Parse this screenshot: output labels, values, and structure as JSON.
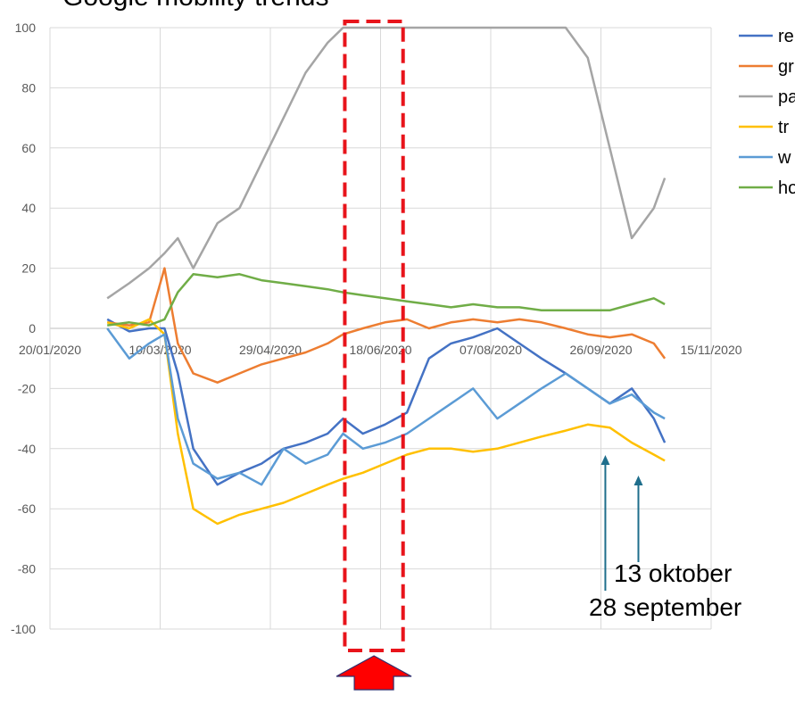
{
  "chart_data": {
    "type": "line",
    "title": "Google mobility trends",
    "xlabel": "",
    "ylabel": "",
    "xlim": [
      "2020-01-20",
      "2020-11-15"
    ],
    "ylim": [
      -100,
      100
    ],
    "x_ticks": [
      "20/01/2020",
      "10/03/2020",
      "29/04/2020",
      "18/06/2020",
      "07/08/2020",
      "26/09/2020",
      "15/11/2020"
    ],
    "y_ticks": [
      "100",
      "80",
      "60",
      "40",
      "20",
      "0",
      "-20",
      "-40",
      "-60",
      "-80",
      "-100"
    ],
    "grid": true,
    "legend_position": "right",
    "legend": [
      {
        "label": "re",
        "color": "#4472c4"
      },
      {
        "label": "gr",
        "color": "#ed7d31"
      },
      {
        "label": "pa",
        "color": "#a5a5a5"
      },
      {
        "label": "tr",
        "color": "#ffc000"
      },
      {
        "label": "w",
        "color": "#5b9bd5"
      },
      {
        "label": "ho",
        "color": "#70ad47"
      }
    ],
    "series": [
      {
        "color": "#4472c4",
        "x": [
          "2020-02-15",
          "2020-02-25",
          "2020-03-05",
          "2020-03-12",
          "2020-03-18",
          "2020-03-25",
          "2020-04-05",
          "2020-04-15",
          "2020-04-25",
          "2020-05-05",
          "2020-05-15",
          "2020-05-25",
          "2020-06-01",
          "2020-06-10",
          "2020-06-20",
          "2020-06-30",
          "2020-07-10",
          "2020-07-20",
          "2020-07-30",
          "2020-08-10",
          "2020-08-20",
          "2020-08-30",
          "2020-09-10",
          "2020-09-20",
          "2020-09-30",
          "2020-10-10",
          "2020-10-20",
          "2020-10-25"
        ],
        "y": [
          3,
          -1,
          0,
          0,
          -15,
          -40,
          -52,
          -48,
          -45,
          -40,
          -38,
          -35,
          -30,
          -35,
          -32,
          -28,
          -10,
          -5,
          -3,
          0,
          -5,
          -10,
          -15,
          -20,
          -25,
          -20,
          -30,
          -38
        ]
      },
      {
        "color": "#ed7d31",
        "x": [
          "2020-02-15",
          "2020-02-25",
          "2020-03-05",
          "2020-03-12",
          "2020-03-18",
          "2020-03-25",
          "2020-04-05",
          "2020-04-15",
          "2020-04-25",
          "2020-05-05",
          "2020-05-15",
          "2020-05-25",
          "2020-06-01",
          "2020-06-10",
          "2020-06-20",
          "2020-06-30",
          "2020-07-10",
          "2020-07-20",
          "2020-07-30",
          "2020-08-10",
          "2020-08-20",
          "2020-08-30",
          "2020-09-10",
          "2020-09-20",
          "2020-09-30",
          "2020-10-10",
          "2020-10-20",
          "2020-10-25"
        ],
        "y": [
          2,
          1,
          2,
          20,
          -5,
          -15,
          -18,
          -15,
          -12,
          -10,
          -8,
          -5,
          -2,
          0,
          2,
          3,
          0,
          2,
          3,
          2,
          3,
          2,
          0,
          -2,
          -3,
          -2,
          -5,
          -10
        ]
      },
      {
        "color": "#a5a5a5",
        "x": [
          "2020-02-15",
          "2020-02-25",
          "2020-03-05",
          "2020-03-12",
          "2020-03-18",
          "2020-03-25",
          "2020-04-05",
          "2020-04-15",
          "2020-04-25",
          "2020-05-05",
          "2020-05-15",
          "2020-05-25",
          "2020-06-01",
          "2020-06-10",
          "2020-06-20",
          "2020-06-30",
          "2020-07-10",
          "2020-07-20",
          "2020-07-30",
          "2020-08-10",
          "2020-08-20",
          "2020-08-30",
          "2020-09-10",
          "2020-09-20",
          "2020-09-30",
          "2020-10-10",
          "2020-10-20",
          "2020-10-25"
        ],
        "y": [
          10,
          15,
          20,
          25,
          30,
          20,
          35,
          40,
          55,
          70,
          85,
          95,
          100,
          100,
          100,
          100,
          100,
          100,
          100,
          100,
          100,
          100,
          100,
          90,
          60,
          30,
          40,
          50
        ]
      },
      {
        "color": "#ffc000",
        "x": [
          "2020-02-15",
          "2020-02-25",
          "2020-03-05",
          "2020-03-12",
          "2020-03-18",
          "2020-03-25",
          "2020-04-05",
          "2020-04-15",
          "2020-04-25",
          "2020-05-05",
          "2020-05-15",
          "2020-05-25",
          "2020-06-01",
          "2020-06-10",
          "2020-06-20",
          "2020-06-30",
          "2020-07-10",
          "2020-07-20",
          "2020-07-30",
          "2020-08-10",
          "2020-08-20",
          "2020-08-30",
          "2020-09-10",
          "2020-09-20",
          "2020-09-30",
          "2020-10-10",
          "2020-10-20",
          "2020-10-25"
        ],
        "y": [
          2,
          0,
          3,
          -2,
          -35,
          -60,
          -65,
          -62,
          -60,
          -58,
          -55,
          -52,
          -50,
          -48,
          -45,
          -42,
          -40,
          -40,
          -41,
          -40,
          -38,
          -36,
          -34,
          -32,
          -33,
          -38,
          -42,
          -44
        ]
      },
      {
        "color": "#5b9bd5",
        "x": [
          "2020-02-15",
          "2020-02-25",
          "2020-03-05",
          "2020-03-12",
          "2020-03-18",
          "2020-03-25",
          "2020-04-05",
          "2020-04-15",
          "2020-04-25",
          "2020-05-05",
          "2020-05-15",
          "2020-05-25",
          "2020-06-01",
          "2020-06-10",
          "2020-06-20",
          "2020-06-30",
          "2020-07-10",
          "2020-07-20",
          "2020-07-30",
          "2020-08-10",
          "2020-08-20",
          "2020-08-30",
          "2020-09-10",
          "2020-09-20",
          "2020-09-30",
          "2020-10-10",
          "2020-10-20",
          "2020-10-25"
        ],
        "y": [
          0,
          -10,
          -5,
          -2,
          -30,
          -45,
          -50,
          -48,
          -52,
          -40,
          -45,
          -42,
          -35,
          -40,
          -38,
          -35,
          -30,
          -25,
          -20,
          -30,
          -25,
          -20,
          -15,
          -20,
          -25,
          -22,
          -28,
          -30
        ]
      },
      {
        "color": "#70ad47",
        "x": [
          "2020-02-15",
          "2020-02-25",
          "2020-03-05",
          "2020-03-12",
          "2020-03-18",
          "2020-03-25",
          "2020-04-05",
          "2020-04-15",
          "2020-04-25",
          "2020-05-05",
          "2020-05-15",
          "2020-05-25",
          "2020-06-01",
          "2020-06-10",
          "2020-06-20",
          "2020-06-30",
          "2020-07-10",
          "2020-07-20",
          "2020-07-30",
          "2020-08-10",
          "2020-08-20",
          "2020-08-30",
          "2020-09-10",
          "2020-09-20",
          "2020-09-30",
          "2020-10-10",
          "2020-10-20",
          "2020-10-25"
        ],
        "y": [
          1,
          2,
          1,
          3,
          12,
          18,
          17,
          18,
          16,
          15,
          14,
          13,
          12,
          11,
          10,
          9,
          8,
          7,
          8,
          7,
          7,
          6,
          6,
          6,
          6,
          8,
          10,
          8
        ]
      }
    ],
    "annotations": {
      "label_1": "13 oktober",
      "label_2": "28 september",
      "arrow_1_date": "2020-09-28",
      "arrow_2_date": "2020-10-13",
      "highlight_range": [
        "2020-06-03",
        "2020-06-27"
      ]
    }
  }
}
